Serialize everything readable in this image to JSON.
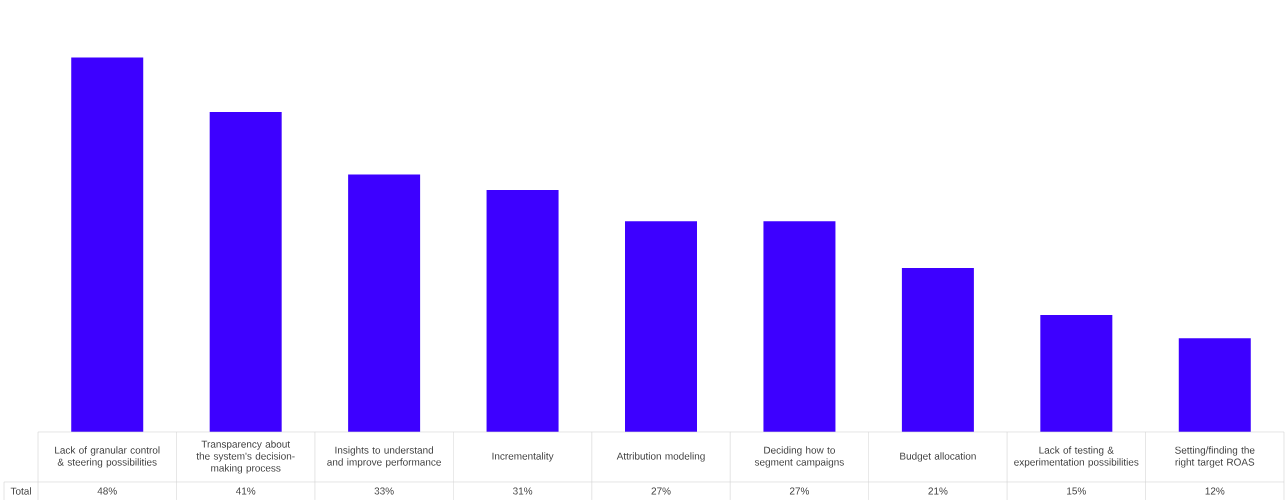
{
  "chart_data": {
    "type": "bar",
    "categories": [
      "Lack of granular control & steering possibilities",
      "Transparency about the system's decision-making process",
      "Insights to understand and improve performance",
      "Incrementality",
      "Attribution modeling",
      "Deciding how to segment campaigns",
      "Budget allocation",
      "Lack of testing & experimentation possibilities",
      "Setting/finding the right target ROAS"
    ],
    "values": [
      48,
      41,
      33,
      31,
      27,
      27,
      21,
      15,
      12
    ],
    "value_labels": [
      "48%",
      "41%",
      "33%",
      "31%",
      "27%",
      "27%",
      "21%",
      "15%",
      "12%"
    ],
    "color": "#3d00ff",
    "annotations": [
      "Total"
    ]
  }
}
